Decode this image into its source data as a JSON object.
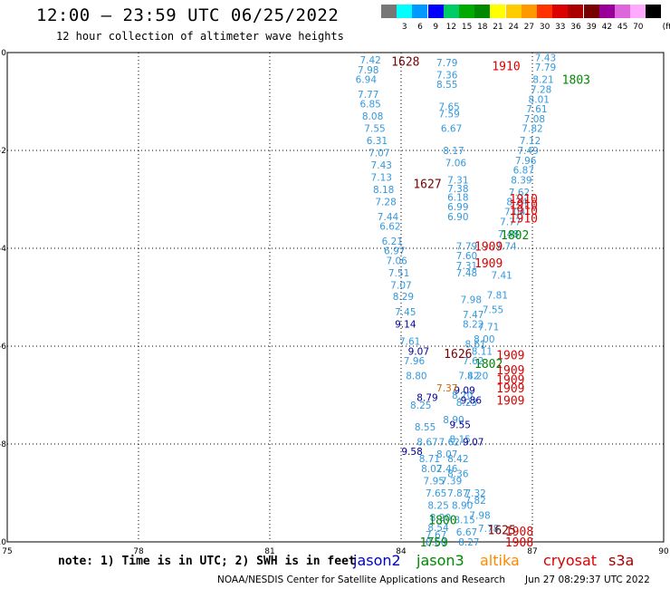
{
  "header": {
    "title": "12:00 — 23:59 UTC 06/25/2022",
    "subtitle": "12 hour collection of altimeter wave heights"
  },
  "legend": {
    "unit": "(ft)",
    "colors": [
      "#777777",
      "#00ffff",
      "#0099ff",
      "#0000ff",
      "#00cc66",
      "#00aa00",
      "#008800",
      "#ffff00",
      "#ffcc00",
      "#ff9900",
      "#ff3300",
      "#dd0000",
      "#aa0000",
      "#770000",
      "#990099",
      "#dd66dd",
      "#ffaaff",
      "#000000"
    ],
    "labels": [
      "3",
      "6",
      "9",
      "12",
      "15",
      "18",
      "21",
      "24",
      "27",
      "30",
      "33",
      "36",
      "39",
      "42",
      "45",
      "70"
    ]
  },
  "chart_data": {
    "type": "scatter",
    "xlim": [
      75,
      90
    ],
    "ylim": [
      -10,
      0
    ],
    "xticks": [
      "75",
      "78",
      "81",
      "84",
      "87",
      "90"
    ],
    "yticks": [
      "0",
      "-2",
      "-4",
      "-6",
      "-8",
      "-10"
    ],
    "grid": true,
    "tracks": [
      {
        "color": "#3399dd",
        "points": [
          [
            83.3,
            -0.15,
            "7.42"
          ],
          [
            83.25,
            -0.35,
            "7.98"
          ],
          [
            83.2,
            -0.55,
            "6.94"
          ],
          [
            83.25,
            -0.85,
            "7.77"
          ],
          [
            83.3,
            -1.05,
            "6.85"
          ],
          [
            83.35,
            -1.3,
            "8.08"
          ],
          [
            83.4,
            -1.55,
            "7.55"
          ],
          [
            83.45,
            -1.8,
            "6.31"
          ],
          [
            83.5,
            -2.05,
            "7.07"
          ],
          [
            83.55,
            -2.3,
            "7.43"
          ],
          [
            83.55,
            -2.55,
            "7.13"
          ],
          [
            83.6,
            -2.8,
            "8.18"
          ],
          [
            83.65,
            -3.05,
            "7.28"
          ],
          [
            83.7,
            -3.35,
            "7.44"
          ],
          [
            83.75,
            -3.55,
            "6.62"
          ],
          [
            83.8,
            -3.85,
            "6.21"
          ],
          [
            83.85,
            -4.05,
            "6.97"
          ],
          [
            83.9,
            -4.25,
            "7.06"
          ],
          [
            83.95,
            -4.5,
            "7.51"
          ],
          [
            84.0,
            -4.75,
            "7.07"
          ],
          [
            84.05,
            -4.98,
            "8.29"
          ],
          [
            84.1,
            -5.3,
            "7.45"
          ],
          [
            84.2,
            -5.9,
            "7.61"
          ],
          [
            84.3,
            -6.3,
            "7.96"
          ],
          [
            84.35,
            -6.6,
            "8.80"
          ],
          [
            84.45,
            -7.2,
            "8.25"
          ],
          [
            84.55,
            -7.65,
            "8.55"
          ],
          [
            84.6,
            -7.95,
            "8.67"
          ],
          [
            84.65,
            -8.3,
            "8.71"
          ],
          [
            84.7,
            -8.5,
            "8.02"
          ],
          [
            84.75,
            -8.75,
            "7.95"
          ],
          [
            84.8,
            -9.0,
            "7.65"
          ],
          [
            84.85,
            -9.25,
            "8.25"
          ],
          [
            84.9,
            -9.5,
            "8.20"
          ],
          [
            84.85,
            -9.7,
            "8.54"
          ],
          [
            84.8,
            -9.85,
            "7.67"
          ],
          [
            84.8,
            -10.0,
            "8.60"
          ]
        ]
      },
      {
        "color": "#3399dd",
        "points": [
          [
            85.05,
            -0.2,
            "7.79"
          ],
          [
            85.05,
            -0.45,
            "7.36"
          ],
          [
            85.05,
            -0.65,
            "8.55"
          ],
          [
            85.1,
            -1.1,
            "7.65"
          ],
          [
            85.1,
            -1.25,
            "7.59"
          ],
          [
            85.15,
            -1.55,
            "6.67"
          ],
          [
            85.2,
            -2.0,
            "8.17"
          ],
          [
            85.25,
            -2.25,
            "7.06"
          ],
          [
            85.3,
            -2.6,
            "7.31"
          ],
          [
            85.3,
            -2.78,
            "7.38"
          ],
          [
            85.3,
            -2.95,
            "6.18"
          ],
          [
            85.3,
            -3.15,
            "6.99"
          ],
          [
            85.3,
            -3.35,
            "6.90"
          ],
          [
            85.5,
            -3.95,
            "7.79"
          ],
          [
            85.5,
            -4.15,
            "7.60"
          ],
          [
            85.5,
            -4.35,
            "7.31"
          ],
          [
            85.5,
            -4.5,
            "7.48"
          ],
          [
            85.6,
            -5.05,
            "7.98"
          ],
          [
            85.65,
            -5.35,
            "7.47"
          ],
          [
            85.65,
            -5.55,
            "8.22"
          ],
          [
            85.7,
            -5.95,
            "8.61"
          ],
          [
            85.65,
            -6.3,
            "7.62"
          ],
          [
            85.55,
            -6.6,
            "7.42"
          ],
          [
            85.4,
            -7.0,
            "8.70"
          ],
          [
            85.2,
            -7.5,
            "8.90"
          ],
          [
            85.1,
            -7.95,
            "7.62"
          ],
          [
            85.05,
            -8.2,
            "8.07"
          ],
          [
            85.05,
            -8.5,
            "7.46"
          ],
          [
            85.15,
            -8.75,
            "7.39"
          ],
          [
            85.3,
            -9.0,
            "7.87"
          ],
          [
            85.4,
            -9.25,
            "8.90"
          ],
          [
            85.45,
            -9.55,
            "8.15"
          ],
          [
            85.5,
            -9.8,
            "6.67"
          ],
          [
            85.55,
            -10.0,
            "8.27"
          ]
        ]
      },
      {
        "color": "#3399dd",
        "points": [
          [
            87.3,
            -0.1,
            "7.43"
          ],
          [
            87.3,
            -0.3,
            "7.79"
          ],
          [
            87.25,
            -0.55,
            "8.21"
          ],
          [
            87.2,
            -0.75,
            "7.28"
          ],
          [
            87.15,
            -0.95,
            "8.01"
          ],
          [
            87.1,
            -1.15,
            "7.61"
          ],
          [
            87.05,
            -1.35,
            "7.08"
          ],
          [
            87.0,
            -1.55,
            "7.82"
          ],
          [
            86.95,
            -1.8,
            "7.12"
          ],
          [
            86.9,
            -2.0,
            "7.49"
          ],
          [
            86.85,
            -2.2,
            "7.96"
          ],
          [
            86.8,
            -2.4,
            "6.87"
          ],
          [
            86.75,
            -2.6,
            "8.39"
          ],
          [
            86.7,
            -2.85,
            "7.62"
          ],
          [
            86.65,
            -3.05,
            "8.24"
          ],
          [
            86.6,
            -3.25,
            "7.04"
          ],
          [
            86.5,
            -3.45,
            "7.77"
          ],
          [
            86.45,
            -3.7,
            "7.48"
          ],
          [
            86.4,
            -3.95,
            "7.74"
          ],
          [
            86.3,
            -4.55,
            "7.41"
          ],
          [
            86.2,
            -4.95,
            "7.81"
          ],
          [
            86.1,
            -5.25,
            "7.55"
          ],
          [
            86.0,
            -5.6,
            "7.71"
          ],
          [
            85.9,
            -5.85,
            "8.00"
          ],
          [
            85.85,
            -6.1,
            "8.11"
          ],
          [
            85.75,
            -6.6,
            "8.20"
          ],
          [
            85.5,
            -7.15,
            "8.23"
          ],
          [
            85.35,
            -7.9,
            "8.15"
          ],
          [
            85.3,
            -8.3,
            "8.42"
          ],
          [
            85.3,
            -8.6,
            "8.36"
          ],
          [
            85.7,
            -9.0,
            "7.32"
          ],
          [
            85.7,
            -9.15,
            "7.82"
          ],
          [
            85.8,
            -9.45,
            "7.98"
          ],
          [
            86.0,
            -9.72,
            "7.78"
          ]
        ]
      },
      {
        "color": "#000099",
        "points": [
          [
            84.1,
            -5.55,
            "9.14"
          ],
          [
            84.4,
            -6.1,
            "9.07"
          ],
          [
            84.6,
            -7.05,
            "8.79"
          ],
          [
            84.25,
            -8.15,
            "9.58"
          ],
          [
            85.45,
            -6.9,
            "9.09"
          ],
          [
            85.6,
            -7.1,
            "9.86"
          ],
          [
            85.35,
            -7.6,
            "9.55"
          ],
          [
            85.65,
            -7.95,
            "9.07"
          ]
        ]
      },
      {
        "color": "#cc6600",
        "points": [
          [
            85.05,
            -6.85,
            "7.37"
          ]
        ]
      }
    ],
    "stamps": [
      {
        "text": "1628",
        "color": "#770000",
        "x": 84.1,
        "y": -0.18
      },
      {
        "text": "1910",
        "color": "#dd0000",
        "x": 86.4,
        "y": -0.27
      },
      {
        "text": "1803",
        "color": "#008800",
        "x": 88.0,
        "y": -0.55
      },
      {
        "text": "1627",
        "color": "#770000",
        "x": 84.6,
        "y": -2.68
      },
      {
        "text": "1910",
        "color": "#dd0000",
        "x": 86.8,
        "y": -2.98
      },
      {
        "text": "1910",
        "color": "#dd0000",
        "x": 86.8,
        "y": -3.1
      },
      {
        "text": "1910",
        "color": "#dd0000",
        "x": 86.8,
        "y": -3.22
      },
      {
        "text": "1910",
        "color": "#dd0000",
        "x": 86.8,
        "y": -3.38
      },
      {
        "text": "1802",
        "color": "#008800",
        "x": 86.6,
        "y": -3.72
      },
      {
        "text": "1909",
        "color": "#dd0000",
        "x": 86.0,
        "y": -3.95
      },
      {
        "text": "1909",
        "color": "#dd0000",
        "x": 86.0,
        "y": -4.3
      },
      {
        "text": "1626",
        "color": "#770000",
        "x": 85.3,
        "y": -6.15
      },
      {
        "text": "1909",
        "color": "#dd0000",
        "x": 86.5,
        "y": -6.18
      },
      {
        "text": "1802",
        "color": "#008800",
        "x": 86.0,
        "y": -6.35
      },
      {
        "text": "1909",
        "color": "#dd0000",
        "x": 86.5,
        "y": -6.48
      },
      {
        "text": "1909",
        "color": "#dd0000",
        "x": 86.5,
        "y": -6.68
      },
      {
        "text": "1909",
        "color": "#dd0000",
        "x": 86.5,
        "y": -6.85
      },
      {
        "text": "1909",
        "color": "#dd0000",
        "x": 86.5,
        "y": -7.1
      },
      {
        "text": "1800",
        "color": "#008800",
        "x": 84.95,
        "y": -9.55
      },
      {
        "text": "1625",
        "color": "#770000",
        "x": 86.3,
        "y": -9.75
      },
      {
        "text": "1908",
        "color": "#dd0000",
        "x": 86.7,
        "y": -9.78
      },
      {
        "text": "1908",
        "color": "#dd0000",
        "x": 86.7,
        "y": -10.0
      },
      {
        "text": "1759",
        "color": "#008800",
        "x": 84.75,
        "y": -10.0
      }
    ]
  },
  "footer": {
    "note": "note: 1) Time is in UTC; 2) SWH is in feet",
    "satellites": [
      {
        "name": "jason2",
        "color": "#0000cc"
      },
      {
        "name": "jason3",
        "color": "#008800"
      },
      {
        "name": "altika",
        "color": "#ff8800"
      },
      {
        "name": "cryosat",
        "color": "#dd0000"
      },
      {
        "name": "s3a",
        "color": "#aa0000"
      }
    ],
    "credit": "NOAA/NESDIS Center for Satellite Applications and Research",
    "generated": "Jun 27 08:29:37 UTC 2022"
  }
}
